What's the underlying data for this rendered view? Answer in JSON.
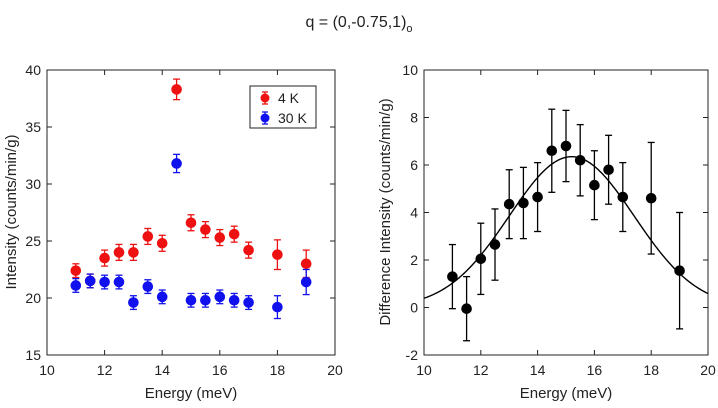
{
  "figure_title": {
    "main": "q = (0,-0.75,1)",
    "subscript": "o"
  },
  "chart_data": [
    {
      "type": "scatter",
      "xlabel": "Energy (meV)",
      "ylabel": "Intensity (counts/min/g)",
      "xlim": [
        10,
        20
      ],
      "ylim": [
        15,
        40
      ],
      "xticks": [
        10,
        12,
        14,
        16,
        18,
        20
      ],
      "yticks": [
        15,
        20,
        25,
        30,
        35,
        40
      ],
      "legend_position": "top-right",
      "series": [
        {
          "name": "4 K",
          "color": "#ee1111",
          "x": [
            11,
            11.5,
            12,
            12.5,
            13,
            13.5,
            14,
            14.5,
            15,
            15.5,
            16,
            16.5,
            17,
            18,
            19
          ],
          "y": [
            22.4,
            21.5,
            23.5,
            24.0,
            24.0,
            25.4,
            24.8,
            38.3,
            26.6,
            26.0,
            25.3,
            25.6,
            24.2,
            23.8,
            23.0
          ],
          "err": [
            0.6,
            0.6,
            0.7,
            0.7,
            0.7,
            0.7,
            0.7,
            0.9,
            0.7,
            0.7,
            0.7,
            0.7,
            0.7,
            1.3,
            1.2
          ]
        },
        {
          "name": "30 K",
          "color": "#1111ee",
          "x": [
            11,
            11.5,
            12,
            12.5,
            13,
            13.5,
            14,
            14.5,
            15,
            15.5,
            16,
            16.5,
            17,
            18,
            19
          ],
          "y": [
            21.1,
            21.5,
            21.4,
            21.4,
            19.6,
            21.0,
            20.1,
            31.8,
            19.8,
            19.8,
            20.1,
            19.8,
            19.6,
            19.2,
            21.4
          ],
          "err": [
            0.6,
            0.6,
            0.6,
            0.6,
            0.6,
            0.6,
            0.6,
            0.8,
            0.6,
            0.6,
            0.6,
            0.6,
            0.6,
            1.0,
            1.1
          ]
        }
      ]
    },
    {
      "type": "scatter",
      "xlabel": "Energy (meV)",
      "ylabel": "Difference Intensity (counts/min/g)",
      "xlim": [
        10,
        20
      ],
      "ylim": [
        -2,
        10
      ],
      "xticks": [
        10,
        12,
        14,
        16,
        18,
        20
      ],
      "yticks": [
        -2,
        0,
        2,
        4,
        6,
        8,
        10
      ],
      "series": [
        {
          "name": "difference",
          "color": "#000000",
          "x": [
            11,
            11.5,
            12,
            12.5,
            13,
            13.5,
            14,
            14.5,
            15,
            15.5,
            16,
            16.5,
            17,
            18,
            19
          ],
          "y": [
            1.3,
            -0.05,
            2.05,
            2.65,
            4.35,
            4.4,
            4.65,
            6.6,
            6.8,
            6.2,
            5.15,
            5.8,
            4.65,
            4.6,
            1.55
          ],
          "err": [
            1.35,
            1.35,
            1.5,
            1.5,
            1.45,
            1.5,
            1.45,
            1.75,
            1.5,
            1.5,
            1.45,
            1.45,
            1.45,
            2.35,
            2.45
          ]
        }
      ],
      "fit": {
        "name": "gaussian-fit",
        "type": "gaussian",
        "amplitude": 6.35,
        "center": 15.2,
        "sigma": 2.2
      }
    }
  ]
}
